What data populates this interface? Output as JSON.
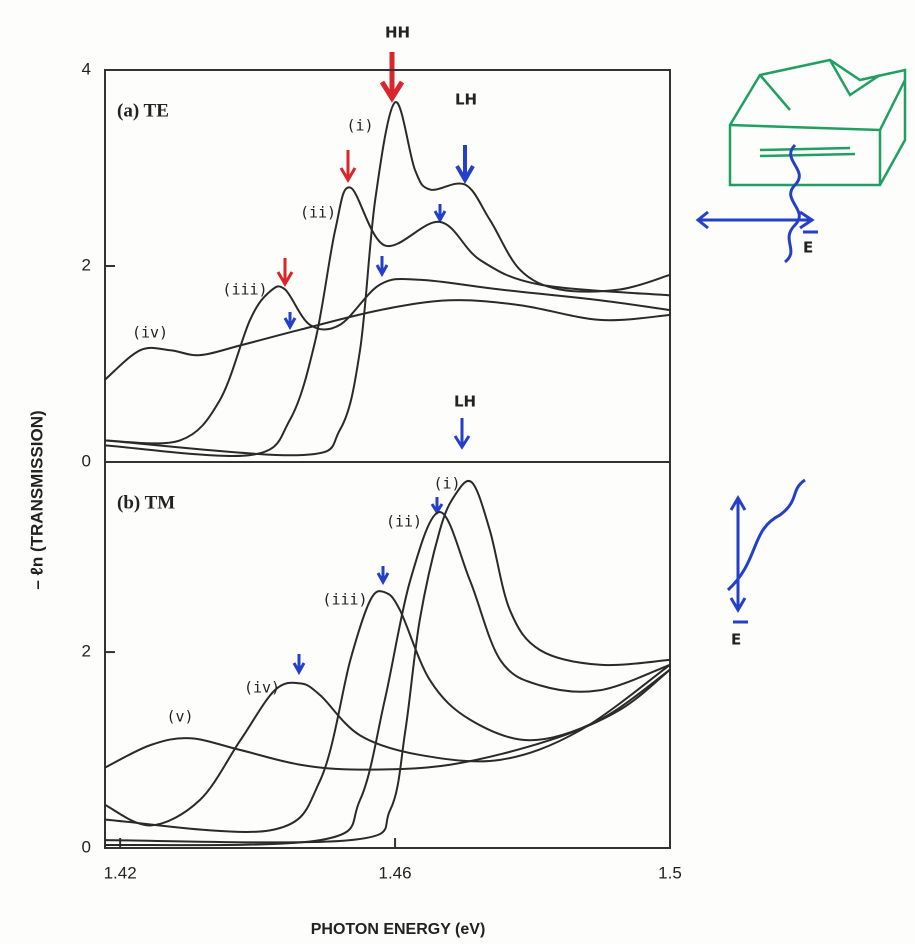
{
  "ylabel": "– ℓn (TRANSMISSION)",
  "xlabel": "PHOTON ENERGY (eV)",
  "sketch_labels": [
    "E",
    "E"
  ],
  "chart_data": [
    {
      "type": "line",
      "title": "(a) TE",
      "color": "#2a2a2a",
      "xlim": [
        1.4178,
        1.5
      ],
      "ylim": [
        0,
        4
      ],
      "yticks": [
        0,
        2,
        4
      ],
      "annotations": [
        "HH",
        "LH"
      ],
      "series": [
        {
          "name": "(i)",
          "x": [
            1.4178,
            1.4462,
            1.452,
            1.4549,
            1.4571,
            1.46,
            1.4629,
            1.4651,
            1.4702,
            1.4738,
            1.4782,
            1.484,
            1.4927,
            1.5
          ],
          "values": [
            0.22,
            0.07,
            0.33,
            1.14,
            2.67,
            3.67,
            2.98,
            2.78,
            2.83,
            2.47,
            1.96,
            1.76,
            1.76,
            1.91
          ]
        },
        {
          "name": "(ii)",
          "x": [
            1.4178,
            1.4389,
            1.4447,
            1.4484,
            1.4513,
            1.4535,
            1.4585,
            1.4665,
            1.4724,
            1.4811,
            1.5
          ],
          "values": [
            0.17,
            0.07,
            0.43,
            1.24,
            2.37,
            2.8,
            2.21,
            2.45,
            2.06,
            1.81,
            1.7
          ]
        },
        {
          "name": "(iii)",
          "x": [
            1.4178,
            1.4287,
            1.4345,
            1.4389,
            1.4418,
            1.444,
            1.4476,
            1.452,
            1.4578,
            1.4636,
            1.4753,
            1.4898,
            1.5
          ],
          "values": [
            0.22,
            0.22,
            0.63,
            1.45,
            1.74,
            1.76,
            1.4,
            1.4,
            1.81,
            1.86,
            1.76,
            1.65,
            1.55
          ]
        },
        {
          "name": "(iv)",
          "x": [
            1.4178,
            1.4229,
            1.4273,
            1.4316,
            1.4375,
            1.4462,
            1.4578,
            1.468,
            1.4782,
            1.4898,
            1.5
          ],
          "values": [
            0.84,
            1.14,
            1.14,
            1.09,
            1.19,
            1.35,
            1.55,
            1.65,
            1.6,
            1.45,
            1.5
          ]
        }
      ]
    },
    {
      "type": "line",
      "title": "(b) TM",
      "color": "#2a2a2a",
      "xlim": [
        1.4178,
        1.5
      ],
      "ylim": [
        0,
        3.94
      ],
      "yticks": [
        0,
        2
      ],
      "xticks": [
        1.42,
        1.46,
        1.5
      ],
      "annotations": [
        "LH"
      ],
      "series": [
        {
          "name": "(i)",
          "x": [
            1.4178,
            1.4535,
            1.4593,
            1.4615,
            1.4636,
            1.4665,
            1.4687,
            1.4712,
            1.4738,
            1.4767,
            1.4811,
            1.4898,
            1.5
          ],
          "values": [
            0.08,
            0.08,
            0.39,
            1.2,
            2.33,
            3.24,
            3.6,
            3.73,
            3.24,
            2.43,
            2.02,
            1.87,
            1.92
          ]
        },
        {
          "name": "(ii)",
          "x": [
            1.4178,
            1.4491,
            1.4549,
            1.4585,
            1.4622,
            1.4665,
            1.4709,
            1.4753,
            1.4811,
            1.4898,
            1.5
          ],
          "values": [
            0.03,
            0.08,
            0.49,
            1.51,
            2.73,
            3.43,
            2.73,
            1.92,
            1.66,
            1.61,
            1.87
          ]
        },
        {
          "name": "(iii)",
          "x": [
            1.4178,
            1.4418,
            1.4491,
            1.4535,
            1.4564,
            1.4585,
            1.4607,
            1.4651,
            1.4709,
            1.4796,
            1.4898,
            1.5
          ],
          "values": [
            0.29,
            0.18,
            0.69,
            1.92,
            2.53,
            2.61,
            2.43,
            1.71,
            1.31,
            1.1,
            1.31,
            1.82
          ]
        },
        {
          "name": "(iv)",
          "x": [
            1.4178,
            1.4244,
            1.4316,
            1.4375,
            1.4425,
            1.4462,
            1.4491,
            1.4549,
            1.4636,
            1.4753,
            1.4869,
            1.5
          ],
          "values": [
            0.44,
            0.23,
            0.49,
            1.1,
            1.61,
            1.68,
            1.56,
            1.15,
            0.95,
            0.9,
            1.2,
            1.87
          ]
        },
        {
          "name": "(v)",
          "x": [
            1.4178,
            1.4244,
            1.4302,
            1.4375,
            1.4462,
            1.4549,
            1.468,
            1.4825,
            1.4927,
            1.5
          ],
          "values": [
            0.82,
            1.05,
            1.12,
            1.0,
            0.85,
            0.8,
            0.85,
            1.1,
            1.41,
            1.82
          ]
        }
      ]
    }
  ]
}
